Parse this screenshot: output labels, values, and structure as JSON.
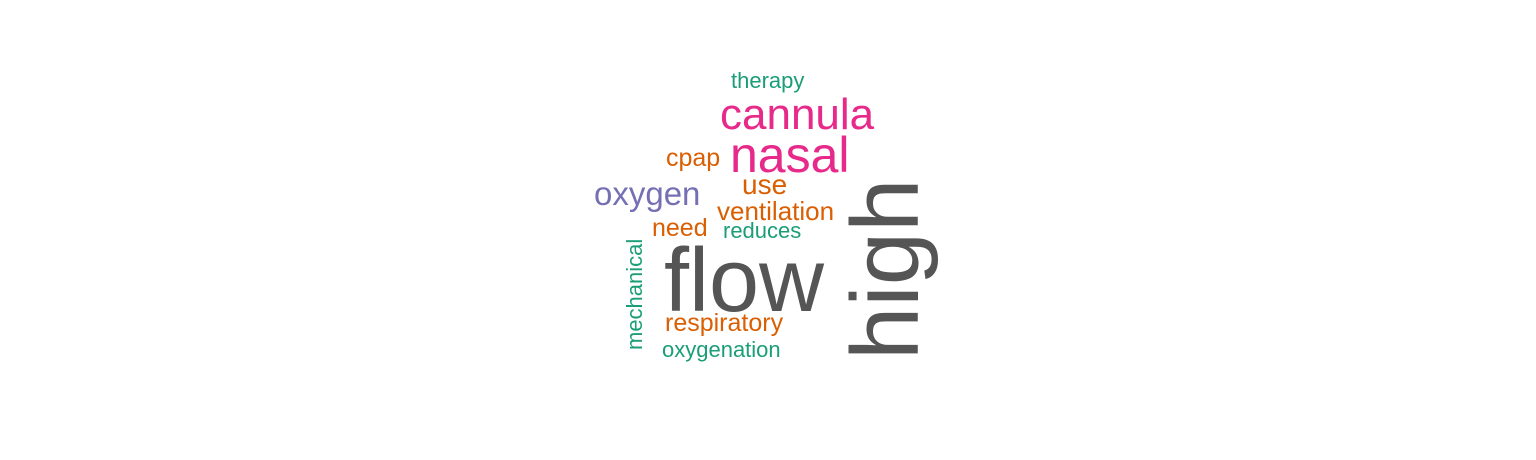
{
  "palette": {
    "gray": "#555555",
    "magenta": "#e7298a",
    "orange": "#d95f02",
    "purple": "#7570b3",
    "teal": "#1b9e77"
  },
  "words": [
    {
      "id": "flow",
      "text": "flow",
      "color": "#555555"
    },
    {
      "id": "high",
      "text": "high",
      "color": "#555555"
    },
    {
      "id": "nasal",
      "text": "nasal",
      "color": "#e7298a"
    },
    {
      "id": "cannula",
      "text": "cannula",
      "color": "#e7298a"
    },
    {
      "id": "oxygen",
      "text": "oxygen",
      "color": "#7570b3"
    },
    {
      "id": "use",
      "text": "use",
      "color": "#d95f02"
    },
    {
      "id": "ventilation",
      "text": "ventilation",
      "color": "#d95f02"
    },
    {
      "id": "cpap",
      "text": "cpap",
      "color": "#d95f02"
    },
    {
      "id": "need",
      "text": "need",
      "color": "#d95f02"
    },
    {
      "id": "respiratory",
      "text": "respiratory",
      "color": "#d95f02"
    },
    {
      "id": "therapy",
      "text": "therapy",
      "color": "#1b9e77"
    },
    {
      "id": "reduces",
      "text": "reduces",
      "color": "#1b9e77"
    },
    {
      "id": "oxygenation",
      "text": "oxygenation",
      "color": "#1b9e77"
    },
    {
      "id": "mechanical",
      "text": "mechanical",
      "color": "#1b9e77"
    }
  ]
}
